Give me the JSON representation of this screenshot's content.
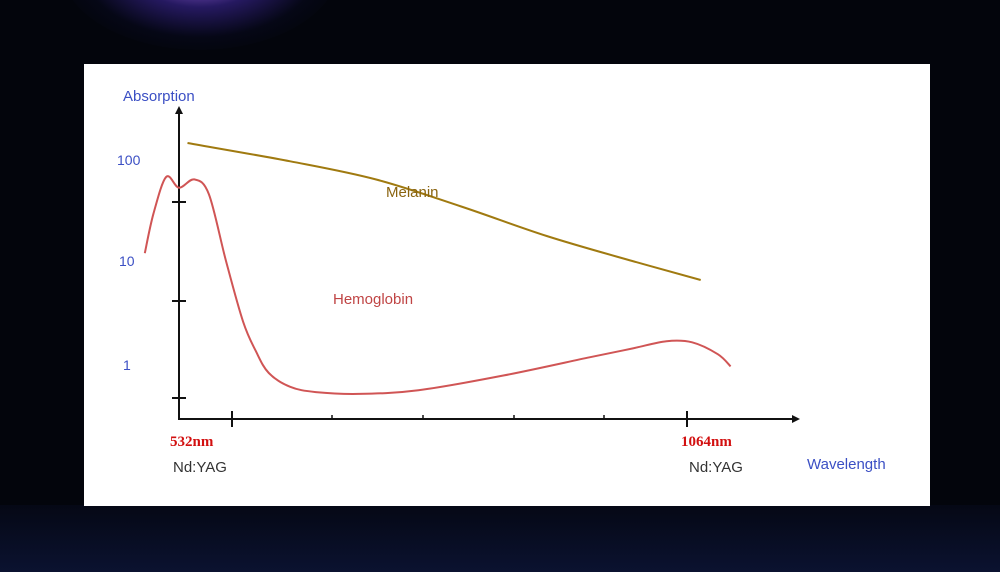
{
  "chart_data": {
    "type": "line",
    "title": "",
    "ylabel": "Absorption",
    "xlabel": "Wavelength",
    "y_scale": "log",
    "y_ticks": [
      "100",
      "10",
      "1"
    ],
    "x_markers": [
      {
        "label": "532nm",
        "sublabel": "Nd:YAG"
      },
      {
        "label": "1064nm",
        "sublabel": "Nd:YAG"
      }
    ],
    "xlim": [
      420,
      1140
    ],
    "series": [
      {
        "name": "Melanin",
        "color": "#a07a10",
        "x": [
          480,
          600,
          700,
          800,
          900,
          1000,
          1080
        ],
        "y": [
          400,
          260,
          170,
          90,
          45,
          25,
          16
        ]
      },
      {
        "name": "Hemoglobin",
        "color": "#d05555",
        "x": [
          430,
          440,
          455,
          470,
          488,
          505,
          525,
          545,
          560,
          575,
          600,
          630,
          680,
          750,
          850,
          950,
          1000,
          1040,
          1070,
          1100,
          1115
        ],
        "y": [
          30,
          75,
          180,
          140,
          170,
          120,
          25,
          6,
          3,
          1.8,
          1.3,
          1.15,
          1.1,
          1.2,
          1.7,
          2.6,
          3.2,
          3.8,
          3.7,
          2.8,
          2.1
        ]
      }
    ]
  }
}
